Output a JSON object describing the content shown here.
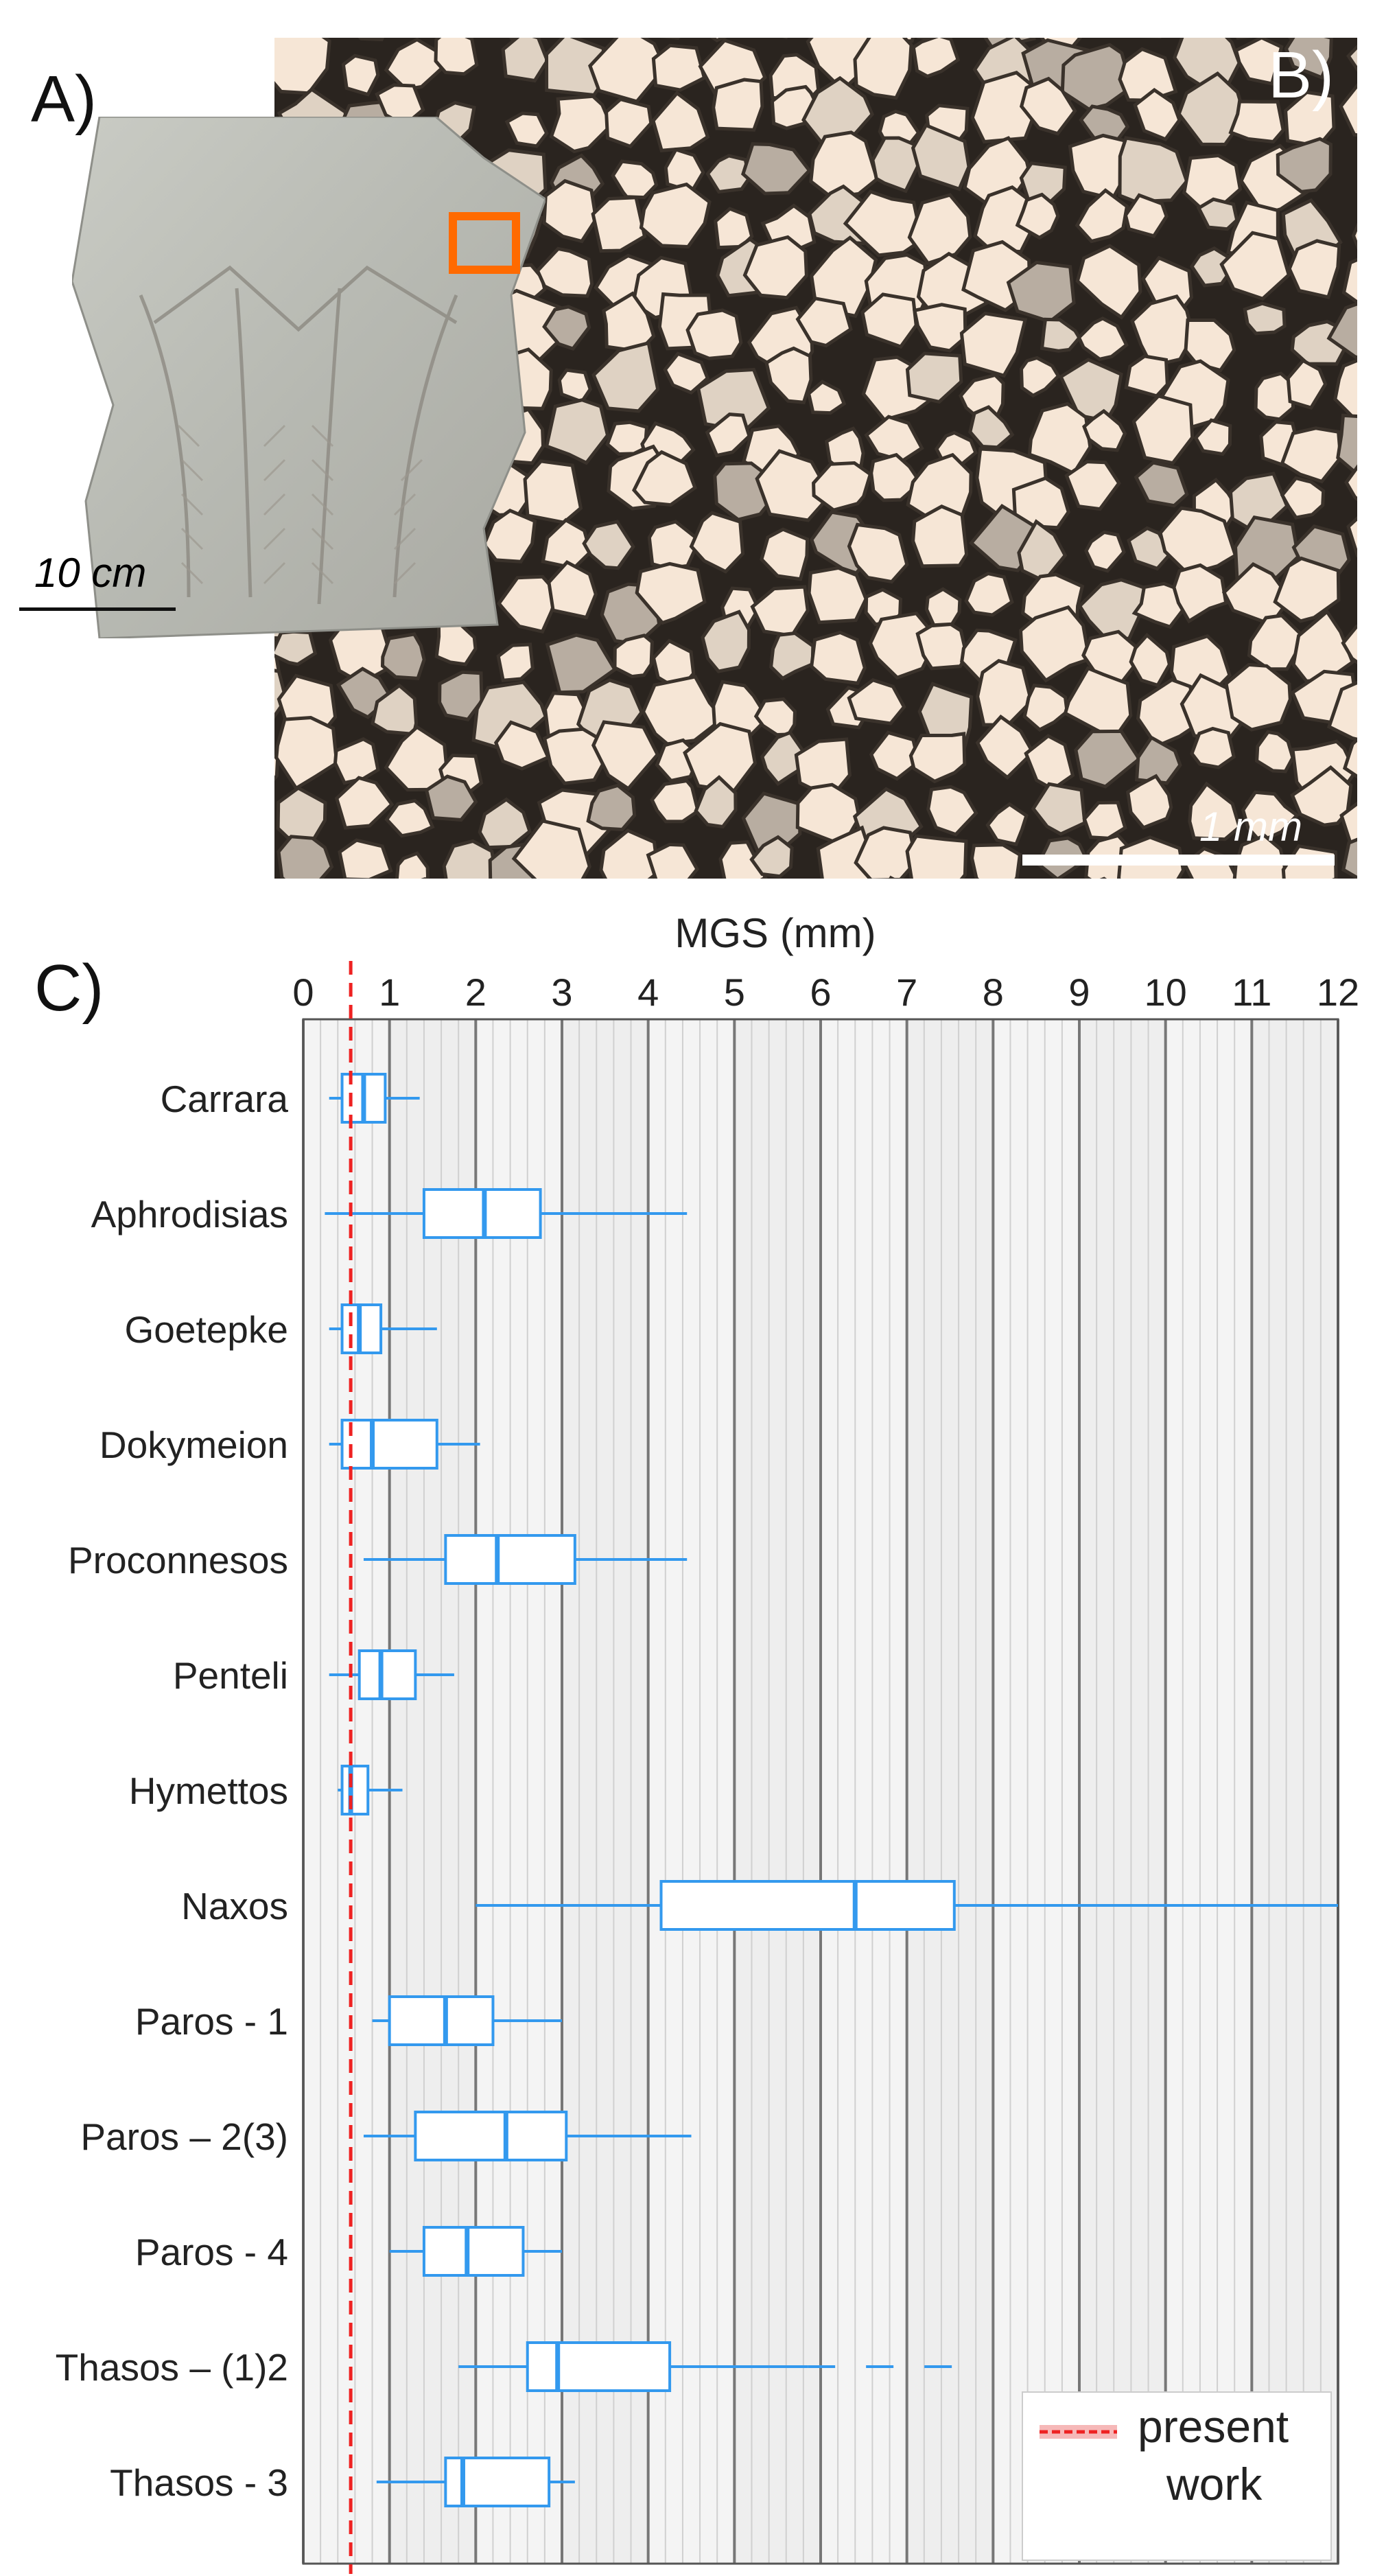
{
  "panels": {
    "a": "A)",
    "b": "B)",
    "c": "C)"
  },
  "scalebars": {
    "photo": "10 cm",
    "micro": "1 mm"
  },
  "colors": {
    "box": "#3399ee",
    "present_line": "#ee2222",
    "photo_marker": "#ff6a00",
    "grain": "#f6e6d6",
    "grain_boundary": "#2a241f"
  },
  "chart_data": {
    "type": "box",
    "title": "MGS (mm)",
    "xlim": [
      0,
      12
    ],
    "xticks": [
      0,
      1,
      2,
      3,
      4,
      5,
      6,
      7,
      8,
      9,
      10,
      11,
      12
    ],
    "grid": true,
    "reference_line": {
      "value": 0.55,
      "label": "present work"
    },
    "legend_position": "bottom-right",
    "series": [
      {
        "name": "Carrara",
        "min": 0.3,
        "q1": 0.45,
        "median": 0.7,
        "q3": 0.95,
        "max": 1.35
      },
      {
        "name": "Aphrodisias",
        "min": 0.25,
        "q1": 1.4,
        "median": 2.1,
        "q3": 2.75,
        "max": 4.45
      },
      {
        "name": "Goetepke",
        "min": 0.3,
        "q1": 0.45,
        "median": 0.65,
        "q3": 0.9,
        "max": 1.55
      },
      {
        "name": "Dokymeion",
        "min": 0.3,
        "q1": 0.45,
        "median": 0.8,
        "q3": 1.55,
        "max": 2.05
      },
      {
        "name": "Proconnesos",
        "min": 0.7,
        "q1": 1.65,
        "median": 2.25,
        "q3": 3.15,
        "max": 4.45
      },
      {
        "name": "Penteli",
        "min": 0.3,
        "q1": 0.65,
        "median": 0.9,
        "q3": 1.3,
        "max": 1.75
      },
      {
        "name": "Hymettos",
        "min": 0.4,
        "q1": 0.45,
        "median": 0.55,
        "q3": 0.75,
        "max": 1.15
      },
      {
        "name": "Naxos",
        "min": 2.0,
        "q1": 4.15,
        "median": 6.4,
        "q3": 7.55,
        "max": 12.0
      },
      {
        "name": "Paros - 1",
        "min": 0.8,
        "q1": 1.0,
        "median": 1.65,
        "q3": 2.2,
        "max": 3.0
      },
      {
        "name": "Paros – 2(3)",
        "min": 0.7,
        "q1": 1.3,
        "median": 2.35,
        "q3": 3.05,
        "max": 4.5
      },
      {
        "name": "Paros - 4",
        "min": 1.0,
        "q1": 1.4,
        "median": 1.9,
        "q3": 2.55,
        "max": 3.0
      },
      {
        "name": "Thasos – (1)2",
        "min": 1.8,
        "q1": 2.6,
        "median": 2.95,
        "q3": 4.25,
        "max": 5.85,
        "dashed_to": 7.55
      },
      {
        "name": "Thasos - 3",
        "min": 0.85,
        "q1": 1.65,
        "median": 1.85,
        "q3": 2.85,
        "max": 3.15
      }
    ]
  }
}
